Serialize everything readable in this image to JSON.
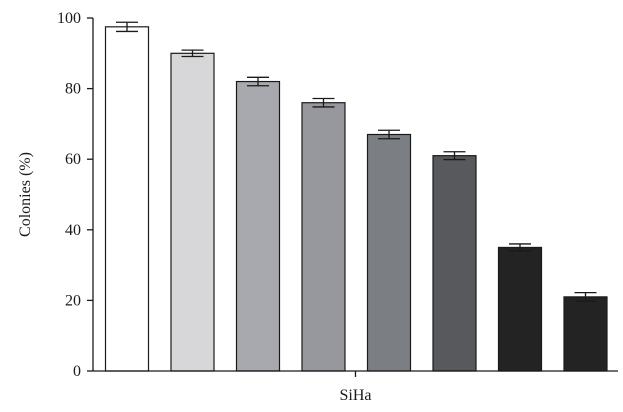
{
  "chart_data": {
    "type": "bar",
    "title": "",
    "xlabel": "SiHa",
    "ylabel": "Colonies (%)",
    "ylim": [
      0,
      100
    ],
    "yticks": [
      0,
      20,
      40,
      60,
      80,
      100
    ],
    "grid": false,
    "categories": [
      "",
      "",
      "",
      "",
      "",
      "",
      "",
      ""
    ],
    "values": [
      97.5,
      90,
      82,
      76,
      67,
      61,
      35,
      21
    ],
    "errors": [
      1.3,
      0.9,
      1.2,
      1.2,
      1.2,
      1.1,
      1.0,
      1.2
    ],
    "bar_colors": [
      "#ffffff",
      "#d7d7da",
      "#a7a9af",
      "#96989e",
      "#7b7e83",
      "#57595c",
      "#232324",
      "#232324"
    ]
  }
}
